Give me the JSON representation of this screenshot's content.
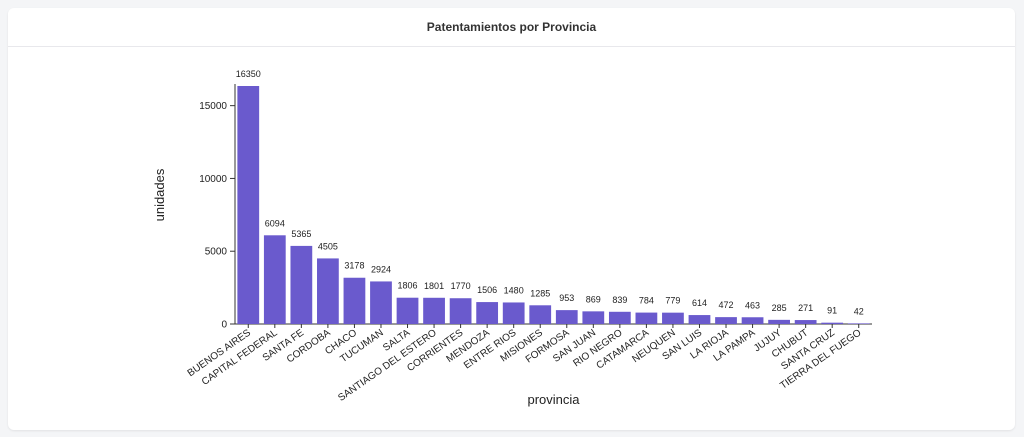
{
  "colors": {
    "bar": "#6a5acd",
    "axis": "#333333"
  },
  "chart_data": {
    "type": "bar",
    "title": "Patentamientos por Provincia",
    "xlabel": "provincia",
    "ylabel": "unidades",
    "ylim": [
      0,
      16350
    ],
    "yticks": [
      "0",
      "5000",
      "10000",
      "15000"
    ],
    "categories": [
      "BUENOS AIRES",
      "CAPITAL FEDERAL",
      "SANTA FE",
      "CORDOBA",
      "CHACO",
      "TUCUMAN",
      "SALTA",
      "SANTIAGO DEL ESTERO",
      "CORRIENTES",
      "MENDOZA",
      "ENTRE RIOS",
      "MISIONES",
      "FORMOSA",
      "SAN JUAN",
      "RIO NEGRO",
      "CATAMARCA",
      "NEUQUEN",
      "SAN LUIS",
      "LA RIOJA",
      "LA PAMPA",
      "JUJUY",
      "CHUBUT",
      "SANTA CRUZ",
      "TIERRA DEL FUEGO"
    ],
    "values": [
      16350,
      6094,
      5365,
      4505,
      3178,
      2924,
      1806,
      1801,
      1770,
      1506,
      1480,
      1285,
      953,
      869,
      839,
      784,
      779,
      614,
      472,
      463,
      285,
      271,
      91,
      42
    ],
    "value_labels": [
      "16350",
      "6094",
      "5365",
      "4505",
      "3178",
      "2924",
      "1806",
      "1801",
      "1770",
      "1506",
      "1480",
      "1285",
      "953",
      "869",
      "839",
      "784",
      "779",
      "614",
      "472",
      "463",
      "285",
      "271",
      "91",
      "42"
    ]
  }
}
